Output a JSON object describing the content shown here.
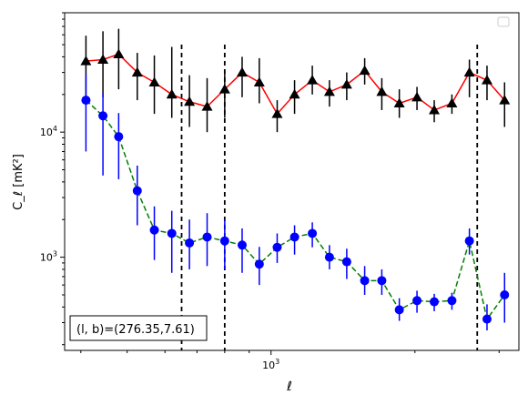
{
  "chart_data": {
    "type": "line",
    "title": "",
    "xlabel": "ℓ",
    "ylabel": "C_ℓ  [mK²]",
    "x_scale": "log",
    "y_scale": "log",
    "xlim": [
      370,
      3300
    ],
    "ylim": [
      180,
      90000
    ],
    "x_tick_labels": [
      {
        "value": 1000,
        "base": "10",
        "exp": "3"
      }
    ],
    "y_tick_labels": [
      {
        "value": 1000,
        "base": "10",
        "exp": "3"
      },
      {
        "value": 10000,
        "base": "10",
        "exp": "4"
      }
    ],
    "legend": {
      "placement": "top-right",
      "entries": []
    },
    "annotation": "(l, b)=(276.35,7.61)",
    "vlines": [
      650,
      800,
      2700
    ],
    "series": [
      {
        "color": "#ff0000",
        "marker": "triangle",
        "marker_color": "#000000",
        "errorbar_color": "#000000",
        "linestyle": "solid",
        "x": [
          410,
          445,
          480,
          525,
          570,
          620,
          675,
          735,
          800,
          870,
          945,
          1030,
          1120,
          1220,
          1325,
          1440,
          1570,
          1705,
          1855,
          2020,
          2195,
          2390,
          2600,
          2830,
          3080
        ],
        "y": [
          37000,
          38000,
          42000,
          30000,
          25000,
          20000,
          17500,
          16000,
          22000,
          30000,
          25000,
          14000,
          20000,
          26000,
          21000,
          24000,
          31000,
          21000,
          17000,
          19000,
          15000,
          17000,
          30000,
          26000,
          18000
        ],
        "yerr_low": [
          20000,
          19000,
          20000,
          12000,
          11000,
          7000,
          6500,
          6000,
          9000,
          11000,
          8000,
          4000,
          6000,
          6000,
          5000,
          6000,
          7000,
          6000,
          4000,
          4000,
          3000,
          3000,
          11000,
          8000,
          7000
        ],
        "yerr_high": [
          22000,
          26000,
          25000,
          13000,
          16000,
          28000,
          11000,
          11000,
          9000,
          10000,
          14000,
          4000,
          6000,
          8000,
          5000,
          6000,
          8000,
          6000,
          5000,
          4000,
          3000,
          3000,
          8000,
          8000,
          7000
        ]
      },
      {
        "color": "#008000",
        "marker": "circle",
        "marker_color": "#0000ff",
        "errorbar_color": "#0000ff",
        "linestyle": "dashed",
        "x": [
          410,
          445,
          480,
          525,
          570,
          620,
          675,
          735,
          800,
          870,
          945,
          1030,
          1120,
          1220,
          1325,
          1440,
          1570,
          1705,
          1855,
          2020,
          2195,
          2390,
          2600,
          2830,
          3080
        ],
        "y": [
          18000,
          13500,
          9200,
          3400,
          1650,
          1550,
          1300,
          1450,
          1350,
          1250,
          880,
          1200,
          1450,
          1550,
          1000,
          920,
          650,
          650,
          380,
          450,
          440,
          450,
          1350,
          320,
          500
        ],
        "yerr_low": [
          11000,
          9000,
          5000,
          1600,
          700,
          800,
          500,
          600,
          550,
          500,
          280,
          300,
          400,
          350,
          200,
          250,
          150,
          150,
          70,
          90,
          70,
          70,
          300,
          60,
          200
        ],
        "yerr_high": [
          11000,
          7000,
          5000,
          2000,
          900,
          800,
          700,
          800,
          650,
          450,
          330,
          350,
          350,
          350,
          250,
          250,
          200,
          150,
          90,
          90,
          70,
          70,
          350,
          100,
          250
        ]
      }
    ]
  }
}
